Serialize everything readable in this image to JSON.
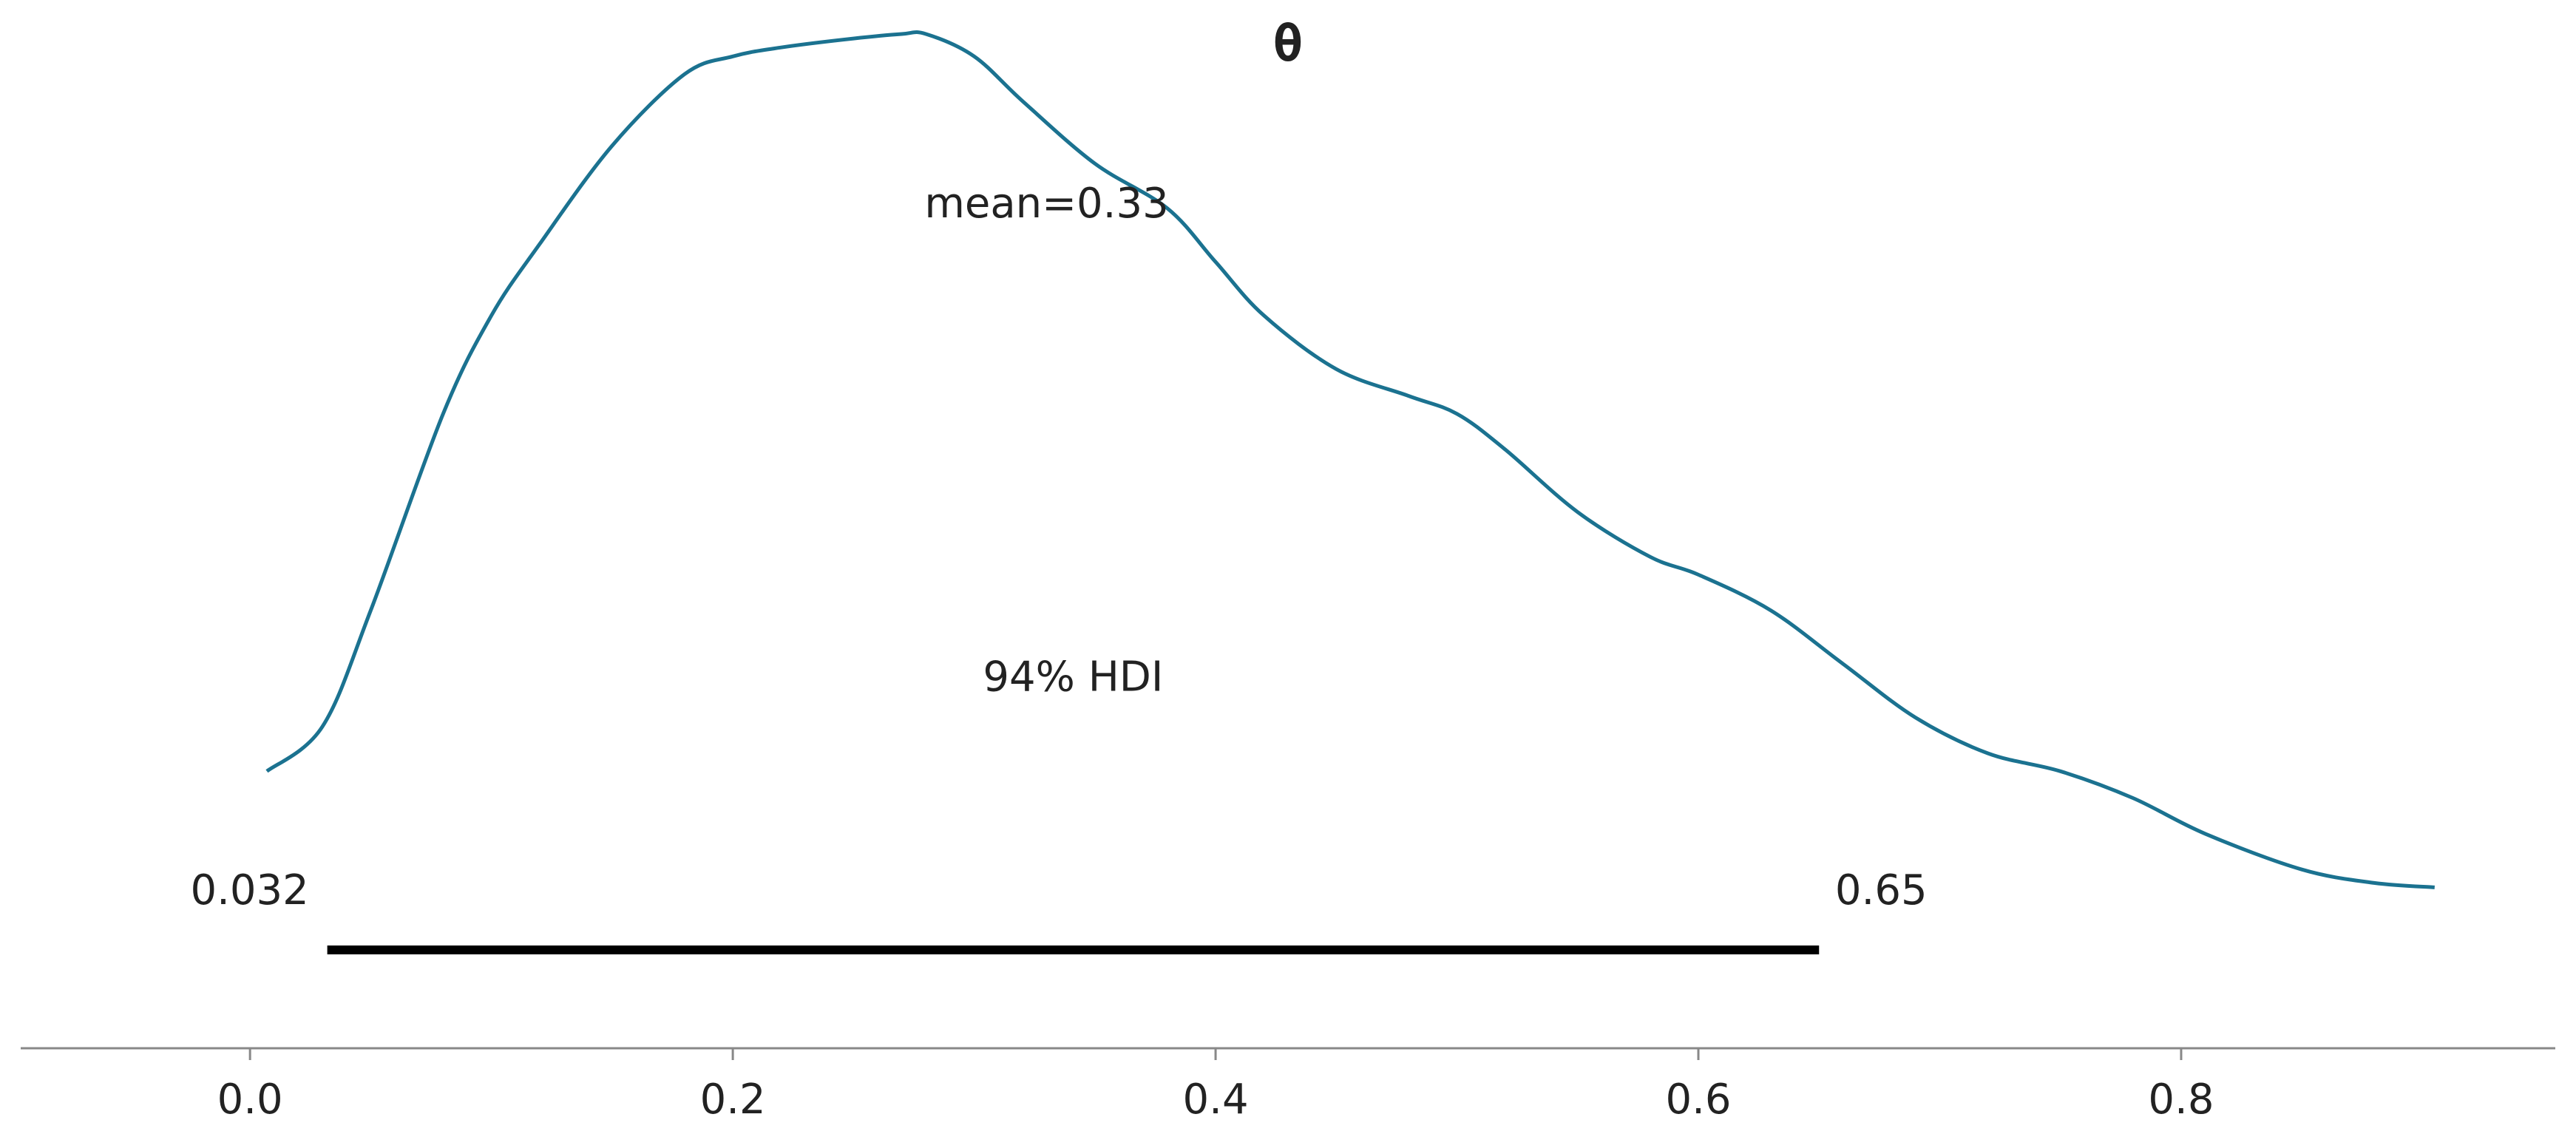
{
  "chart_data": {
    "type": "area",
    "title": "θ",
    "xlabel": "",
    "ylabel": "",
    "xlim": [
      -0.095,
      0.955
    ],
    "ylim": [
      -0.11,
      1.03
    ],
    "x_ticks": [
      "0.0",
      "0.2",
      "0.4",
      "0.6",
      "0.8"
    ],
    "grid": false,
    "mean_label": "mean=0.33",
    "hdi_label": "94% HDI",
    "hdi_lower": 0.032,
    "hdi_upper": 0.65,
    "hdi_lower_label": "0.032",
    "hdi_upper_label": "0.65",
    "series": [
      {
        "color": "#1b7290",
        "x": [
          0.007,
          0.03,
          0.05,
          0.08,
          0.1,
          0.12,
          0.15,
          0.18,
          0.2,
          0.22,
          0.25,
          0.27,
          0.28,
          0.3,
          0.32,
          0.35,
          0.38,
          0.4,
          0.42,
          0.45,
          0.48,
          0.5,
          0.52,
          0.55,
          0.58,
          0.6,
          0.63,
          0.66,
          0.69,
          0.72,
          0.75,
          0.78,
          0.81,
          0.85,
          0.88,
          0.905
        ],
        "y": [
          0.2,
          0.25,
          0.38,
          0.6,
          0.71,
          0.79,
          0.9,
          0.98,
          1.0,
          1.01,
          1.02,
          1.025,
          1.025,
          1.0,
          0.95,
          0.88,
          0.83,
          0.77,
          0.71,
          0.65,
          0.62,
          0.6,
          0.56,
          0.49,
          0.44,
          0.42,
          0.38,
          0.32,
          0.26,
          0.22,
          0.2,
          0.17,
          0.13,
          0.09,
          0.075,
          0.07
        ]
      }
    ],
    "hdi_color": "#000000",
    "axis_color": "#888888"
  }
}
